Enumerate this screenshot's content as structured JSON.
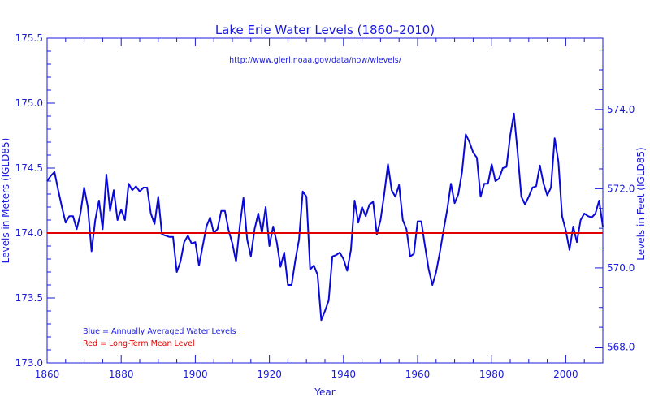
{
  "chart_data": {
    "type": "line",
    "title": "Lake Erie Water Levels (1860–2010)",
    "subtitle": "http://www.glerl.noaa.gov/data/now/wlevels/",
    "xlabel": "Year",
    "ylabel_left": "Levels in Meters (IGLD85)",
    "ylabel_right": "Levels in Feet (IGLD85)",
    "xlim": [
      1860,
      2010
    ],
    "ylim": [
      173.0,
      175.5
    ],
    "ylim_feet": [
      567.6,
      575.8
    ],
    "x_ticks": [
      "1860",
      "1880",
      "1900",
      "1920",
      "1940",
      "1960",
      "1980",
      "2000"
    ],
    "y_ticks_left": [
      "173.0",
      "173.5",
      "174.0",
      "174.5",
      "175.0",
      "175.5"
    ],
    "y_ticks_right": [
      "568.0",
      "570.0",
      "572.0",
      "574.0"
    ],
    "legend": [
      "Blue = Annually Averaged Water Levels",
      "Red = Long-Term Mean Level"
    ],
    "series": [
      {
        "color": "#0a0ad8",
        "x": [
          1860,
          1861,
          1862,
          1863,
          1864,
          1865,
          1866,
          1867,
          1868,
          1869,
          1870,
          1871,
          1872,
          1873,
          1874,
          1875,
          1876,
          1877,
          1878,
          1879,
          1880,
          1881,
          1882,
          1883,
          1884,
          1885,
          1886,
          1887,
          1888,
          1889,
          1890,
          1891,
          1892,
          1893,
          1894,
          1895,
          1896,
          1897,
          1898,
          1899,
          1900,
          1901,
          1902,
          1903,
          1904,
          1905,
          1906,
          1907,
          1908,
          1909,
          1910,
          1911,
          1912,
          1913,
          1914,
          1915,
          1916,
          1917,
          1918,
          1919,
          1920,
          1921,
          1922,
          1923,
          1924,
          1925,
          1926,
          1927,
          1928,
          1929,
          1930,
          1931,
          1932,
          1933,
          1934,
          1935,
          1936,
          1937,
          1938,
          1939,
          1940,
          1941,
          1942,
          1943,
          1944,
          1945,
          1946,
          1947,
          1948,
          1949,
          1950,
          1951,
          1952,
          1953,
          1954,
          1955,
          1956,
          1957,
          1958,
          1959,
          1960,
          1961,
          1962,
          1963,
          1964,
          1965,
          1966,
          1967,
          1968,
          1969,
          1970,
          1971,
          1972,
          1973,
          1974,
          1975,
          1976,
          1977,
          1978,
          1979,
          1980,
          1981,
          1982,
          1983,
          1984,
          1985,
          1986,
          1987,
          1988,
          1989,
          1990,
          1991,
          1992,
          1993,
          1994,
          1995,
          1996,
          1997,
          1998,
          1999,
          2000,
          2001,
          2002,
          2003,
          2004,
          2005,
          2006,
          2007,
          2008,
          2009,
          2010
        ],
        "y": [
          174.4,
          174.44,
          174.47,
          174.33,
          174.2,
          174.08,
          174.13,
          174.13,
          174.03,
          174.15,
          174.35,
          174.2,
          173.86,
          174.1,
          174.25,
          174.03,
          174.45,
          174.17,
          174.33,
          174.1,
          174.18,
          174.1,
          174.38,
          174.33,
          174.36,
          174.32,
          174.35,
          174.35,
          174.15,
          174.07,
          174.28,
          173.99,
          173.98,
          173.97,
          173.97,
          173.7,
          173.78,
          173.93,
          173.98,
          173.92,
          173.93,
          173.75,
          173.9,
          174.05,
          174.12,
          174.0,
          174.03,
          174.17,
          174.17,
          174.02,
          173.92,
          173.78,
          174.05,
          174.27,
          173.95,
          173.82,
          174.03,
          174.15,
          174.0,
          174.2,
          173.9,
          174.05,
          173.93,
          173.74,
          173.85,
          173.6,
          173.6,
          173.79,
          173.95,
          174.32,
          174.28,
          173.72,
          173.75,
          173.68,
          173.33,
          173.4,
          173.48,
          173.82,
          173.83,
          173.85,
          173.8,
          173.71,
          173.87,
          174.25,
          174.08,
          174.2,
          174.13,
          174.22,
          174.24,
          173.99,
          174.1,
          174.3,
          174.53,
          174.33,
          174.28,
          174.37,
          174.1,
          174.03,
          173.82,
          173.84,
          174.09,
          174.09,
          173.9,
          173.72,
          173.6,
          173.7,
          173.85,
          174.02,
          174.18,
          174.38,
          174.23,
          174.3,
          174.47,
          174.76,
          174.7,
          174.62,
          174.58,
          174.28,
          174.38,
          174.38,
          174.53,
          174.4,
          174.42,
          174.5,
          174.51,
          174.75,
          174.92,
          174.62,
          174.28,
          174.22,
          174.28,
          174.35,
          174.36,
          174.52,
          174.38,
          174.29,
          174.35,
          174.73,
          174.55,
          174.13,
          174.02,
          173.87,
          174.05,
          173.93,
          174.1,
          174.15,
          174.13,
          174.12,
          174.15,
          174.25,
          174.05
        ]
      },
      {
        "color": "#e00000",
        "x": [
          1860,
          2010
        ],
        "y": [
          174.0,
          174.0
        ]
      }
    ]
  }
}
